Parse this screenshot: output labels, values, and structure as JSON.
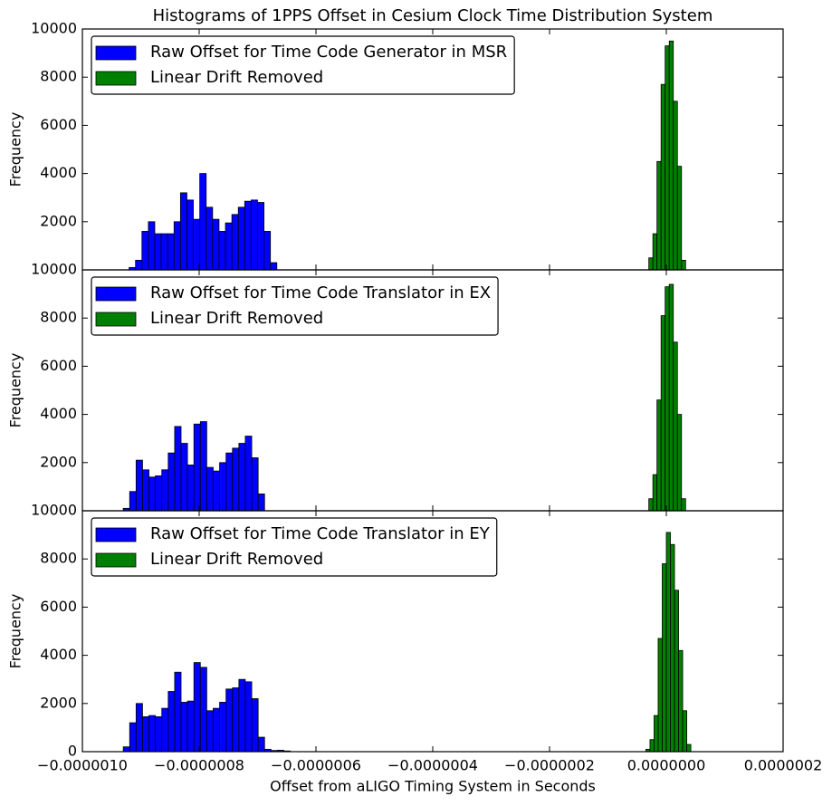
{
  "chart_data": [
    {
      "type": "histogram",
      "title": "Histograms of 1PPS Offset in Cesium Clock Time Distribution System",
      "ylabel": "Frequency",
      "legend": "upper left",
      "xlim": [
        -1e-06,
        2e-07
      ],
      "ylim": [
        0,
        10000
      ],
      "yticks": [
        2000,
        4000,
        6000,
        8000,
        10000
      ],
      "series": [
        {
          "name": "Raw Offset for Time Code Generator in MSR",
          "color": "#0000ff",
          "bins": [
            -9.2e-07,
            -9.09e-07,
            -8.98e-07,
            -8.87e-07,
            -8.76e-07,
            -8.65e-07,
            -8.54e-07,
            -8.43e-07,
            -8.32e-07,
            -8.21e-07,
            -8.1e-07,
            -7.99e-07,
            -7.88e-07,
            -7.77e-07,
            -7.66e-07,
            -7.55e-07,
            -7.44e-07,
            -7.33e-07,
            -7.22e-07,
            -7.11e-07,
            -7e-07,
            -6.89e-07,
            -6.78e-07,
            -6.67e-07
          ],
          "values": [
            100,
            400,
            1600,
            2000,
            1500,
            1500,
            1500,
            2000,
            3200,
            2900,
            2100,
            4000,
            2600,
            2100,
            1600,
            1950,
            2300,
            2600,
            2850,
            2900,
            2800,
            1600,
            300
          ]
        },
        {
          "name": "Linear Drift Removed",
          "color": "#008000",
          "bins": [
            -3e-08,
            -2.3e-08,
            -1.6e-08,
            -9e-09,
            -2e-09,
            5e-09,
            1.2e-08,
            1.9e-08,
            2.6e-08,
            3.3e-08
          ],
          "values": [
            500,
            1500,
            4500,
            7700,
            9300,
            9500,
            7000,
            4300,
            400
          ]
        }
      ]
    },
    {
      "type": "histogram",
      "ylabel": "Frequency",
      "legend": "upper left",
      "xlim": [
        -1e-06,
        2e-07
      ],
      "ylim": [
        0,
        10000
      ],
      "yticks": [
        2000,
        4000,
        6000,
        8000,
        10000
      ],
      "series": [
        {
          "name": "Raw Offset for Time Code Translator in EX",
          "color": "#0000ff",
          "bins": [
            -9.3e-07,
            -9.19e-07,
            -9.08e-07,
            -8.97e-07,
            -8.86e-07,
            -8.75e-07,
            -8.64e-07,
            -8.53e-07,
            -8.42e-07,
            -8.31e-07,
            -8.2e-07,
            -8.09e-07,
            -7.98e-07,
            -7.87e-07,
            -7.76e-07,
            -7.65e-07,
            -7.54e-07,
            -7.43e-07,
            -7.32e-07,
            -7.21e-07,
            -7.1e-07,
            -6.99e-07,
            -6.88e-07
          ],
          "values": [
            100,
            800,
            2100,
            1700,
            1400,
            1450,
            1700,
            2400,
            3500,
            2800,
            1900,
            3600,
            3700,
            1800,
            1650,
            2000,
            2400,
            2600,
            2800,
            3100,
            2200,
            700
          ]
        },
        {
          "name": "Linear Drift Removed",
          "color": "#008000",
          "bins": [
            -3e-08,
            -2.3e-08,
            -1.6e-08,
            -9e-09,
            -2e-09,
            5e-09,
            1.2e-08,
            1.9e-08,
            2.6e-08,
            3.3e-08
          ],
          "values": [
            500,
            1500,
            4600,
            8100,
            9300,
            9400,
            7000,
            4000,
            500
          ]
        }
      ]
    },
    {
      "type": "histogram",
      "xlabel": "Offset from aLIGO Timing System in Seconds",
      "ylabel": "Frequency",
      "legend": "upper left",
      "xlim": [
        -1e-06,
        2e-07
      ],
      "ylim": [
        0,
        10000
      ],
      "xticks": [
        {
          "value": -1e-06,
          "label": "−0.0000010"
        },
        {
          "value": -8e-07,
          "label": "−0.0000008"
        },
        {
          "value": -6e-07,
          "label": "−0.0000006"
        },
        {
          "value": -4e-07,
          "label": "−0.0000004"
        },
        {
          "value": -2e-07,
          "label": "−0.0000002"
        },
        {
          "value": 0,
          "label": "0.0000000"
        },
        {
          "value": 2e-07,
          "label": "0.0000002"
        }
      ],
      "yticks": [
        0,
        2000,
        4000,
        6000,
        8000,
        10000
      ],
      "series": [
        {
          "name": "Raw Offset for Time Code Translator in EY",
          "color": "#0000ff",
          "bins": [
            -9.3e-07,
            -9.19e-07,
            -9.08e-07,
            -8.97e-07,
            -8.86e-07,
            -8.75e-07,
            -8.64e-07,
            -8.53e-07,
            -8.42e-07,
            -8.31e-07,
            -8.2e-07,
            -8.09e-07,
            -7.98e-07,
            -7.87e-07,
            -7.76e-07,
            -7.65e-07,
            -7.54e-07,
            -7.43e-07,
            -7.32e-07,
            -7.21e-07,
            -7.1e-07,
            -6.99e-07,
            -6.88e-07,
            -6.77e-07,
            -6.66e-07,
            -6.55e-07,
            -6.44e-07
          ],
          "values": [
            200,
            1200,
            2000,
            1450,
            1500,
            1450,
            1800,
            2500,
            3300,
            2050,
            2100,
            3700,
            3500,
            1700,
            1800,
            2050,
            2600,
            2650,
            3000,
            2900,
            2200,
            600,
            100,
            50,
            60,
            30
          ]
        },
        {
          "name": "Linear Drift Removed",
          "color": "#008000",
          "bins": [
            -3.5e-08,
            -2.8e-08,
            -2.1e-08,
            -1.4e-08,
            -7e-09,
            0,
            7e-09,
            1.4e-08,
            2.1e-08,
            2.8e-08,
            3.5e-08,
            4.2e-08
          ],
          "values": [
            100,
            500,
            1500,
            4700,
            7800,
            9100,
            8600,
            6700,
            4200,
            1700,
            300
          ]
        }
      ]
    }
  ]
}
